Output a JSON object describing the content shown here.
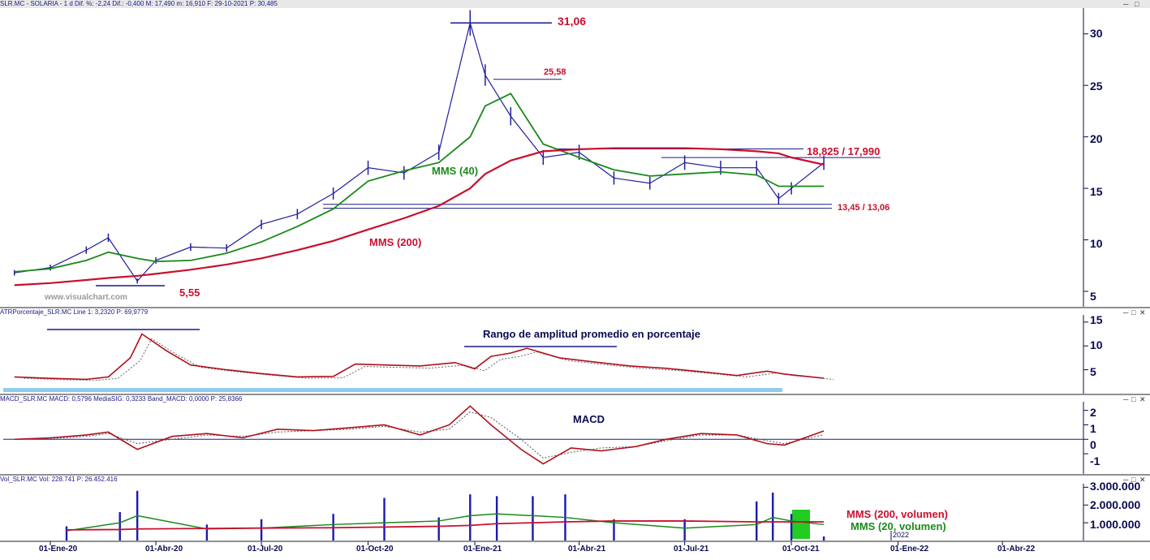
{
  "headers": {
    "price": "SLR.MC - SOLARIA - 1 d Dif. %: -2,24 Dif.: -0,400 M: 17,490 m: 16,910 F: 29-10-2021 P: 30,485",
    "atr": "ATRPorcentaje_SLR.MC Line 1: 3,2320 P: 69,9779",
    "macd": "MACD_SLR.MC MACD: 0,5796 MediaSIG: 0,3233 Band_MACD: 0,0000 P: 25,8366",
    "vol": "Vol_SLR.MC Vol: 228.741 P: 26.452.416"
  },
  "annotations": {
    "high": "31,06",
    "mid_high": "25,58",
    "resistance": "18,825 / 17,990",
    "support": "13,45 / 13,06",
    "low": "5,55",
    "mms40": "MMS (40)",
    "mms200": "MMS (200)",
    "watermark": "www.visualchart.com",
    "atr_title": "Rango de amplitud promedio en porcentaje",
    "macd_title": "MACD",
    "vol_mms200": "MMS (200, volumen)",
    "vol_mms20": "MMS (20, volumen)",
    "year_label": "2022"
  },
  "colors": {
    "price": "#1f1f9e",
    "mms40": "#1a8a1a",
    "mms200": "#c8102e",
    "grid": "#0b0b52",
    "atr_band": "#8fcbef",
    "vol_highlight": "#22cc22"
  },
  "chart_data": [
    {
      "type": "line",
      "panel": "price",
      "x": [
        "2019-12-01",
        "2020-01-01",
        "2020-02-01",
        "2020-02-20",
        "2020-03-16",
        "2020-04-01",
        "2020-05-01",
        "2020-06-01",
        "2020-07-01",
        "2020-08-01",
        "2020-09-01",
        "2020-10-01",
        "2020-11-01",
        "2020-12-01",
        "2020-12-28",
        "2021-01-10",
        "2021-02-01",
        "2021-03-01",
        "2021-04-01",
        "2021-05-01",
        "2021-06-01",
        "2021-07-01",
        "2021-08-01",
        "2021-09-01",
        "2021-09-20",
        "2021-10-01",
        "2021-10-29"
      ],
      "series": [
        {
          "name": "SOLARIA",
          "values": [
            6.8,
            7.3,
            9.0,
            10.2,
            6.0,
            8.0,
            9.3,
            9.2,
            11.5,
            12.5,
            14.5,
            17.0,
            16.5,
            18.5,
            31.06,
            26.0,
            22.0,
            18.0,
            18.5,
            16.0,
            15.5,
            17.5,
            17.0,
            17.0,
            14.0,
            15.0,
            17.49
          ]
        },
        {
          "name": "MMS (40)",
          "values": [
            6.9,
            7.2,
            8.0,
            8.8,
            8.2,
            7.9,
            8.0,
            8.7,
            9.8,
            11.3,
            13.0,
            15.7,
            16.7,
            17.5,
            20.0,
            23.0,
            24.2,
            19.3,
            18.0,
            16.8,
            16.2,
            16.4,
            16.6,
            16.3,
            15.2,
            15.2,
            15.2
          ]
        },
        {
          "name": "MMS (200)",
          "values": [
            5.6,
            5.8,
            6.1,
            6.3,
            6.5,
            6.7,
            7.1,
            7.6,
            8.2,
            9.0,
            9.9,
            11.0,
            12.1,
            13.3,
            15.0,
            16.4,
            17.7,
            18.6,
            18.8,
            18.9,
            18.9,
            18.9,
            18.8,
            18.6,
            18.4,
            18.0,
            17.3
          ]
        }
      ],
      "ylim": [
        3.5,
        32.5
      ],
      "yticks": [
        5,
        10,
        15,
        20,
        25,
        30
      ],
      "levels": [
        31.06,
        25.58,
        18.825,
        17.99,
        13.45,
        13.06,
        5.55
      ]
    },
    {
      "type": "line",
      "panel": "atr",
      "x": [
        "2019-12-01",
        "2020-01-01",
        "2020-02-01",
        "2020-02-20",
        "2020-03-10",
        "2020-03-20",
        "2020-04-10",
        "2020-05-01",
        "2020-06-01",
        "2020-07-01",
        "2020-08-01",
        "2020-09-01",
        "2020-09-20",
        "2020-10-15",
        "2020-11-15",
        "2020-12-15",
        "2021-01-01",
        "2021-01-15",
        "2021-02-01",
        "2021-02-15",
        "2021-03-15",
        "2021-04-15",
        "2021-05-15",
        "2021-06-15",
        "2021-07-15",
        "2021-08-15",
        "2021-09-10",
        "2021-09-25",
        "2021-10-29"
      ],
      "series": [
        {
          "name": "Line 1",
          "values": [
            3.5,
            3.2,
            3.0,
            3.5,
            7.5,
            12.5,
            9.0,
            6.0,
            5.0,
            4.2,
            3.5,
            3.6,
            6.2,
            6.0,
            5.8,
            6.5,
            5.2,
            7.8,
            8.5,
            9.5,
            7.5,
            6.6,
            5.8,
            5.3,
            4.6,
            3.8,
            4.7,
            4.1,
            3.23
          ]
        }
      ],
      "ylim": [
        0,
        16.5
      ],
      "yticks": [
        5,
        10,
        15
      ]
    },
    {
      "type": "line",
      "panel": "macd",
      "x": [
        "2019-12-01",
        "2020-01-01",
        "2020-02-01",
        "2020-02-20",
        "2020-03-16",
        "2020-04-15",
        "2020-05-15",
        "2020-06-15",
        "2020-07-15",
        "2020-08-15",
        "2020-09-15",
        "2020-10-15",
        "2020-11-15",
        "2020-12-10",
        "2020-12-28",
        "2021-01-15",
        "2021-02-10",
        "2021-03-01",
        "2021-03-25",
        "2021-04-20",
        "2021-05-20",
        "2021-06-15",
        "2021-07-15",
        "2021-08-15",
        "2021-09-10",
        "2021-09-25",
        "2021-10-29"
      ],
      "series": [
        {
          "name": "MACD",
          "values": [
            0.0,
            0.1,
            0.3,
            0.5,
            -0.7,
            0.2,
            0.4,
            0.1,
            0.7,
            0.6,
            0.8,
            1.0,
            0.3,
            1.0,
            2.3,
            1.0,
            -0.7,
            -1.7,
            -0.6,
            -0.8,
            -0.5,
            0.0,
            0.4,
            0.3,
            -0.3,
            -0.4,
            0.58
          ]
        },
        {
          "name": "MediaSIG",
          "values": [
            0.0,
            0.05,
            0.2,
            0.4,
            -0.3,
            0.0,
            0.3,
            0.2,
            0.5,
            0.6,
            0.7,
            0.9,
            0.5,
            0.7,
            1.9,
            1.5,
            0.0,
            -1.3,
            -0.9,
            -0.6,
            -0.5,
            -0.1,
            0.3,
            0.3,
            -0.1,
            -0.3,
            0.32
          ]
        }
      ],
      "ylim": [
        -2.4,
        2.6
      ],
      "yticks": [
        -1,
        0,
        1,
        2
      ]
    },
    {
      "type": "bar",
      "panel": "volume",
      "x": [
        "2020-01-15",
        "2020-03-01",
        "2020-03-16",
        "2020-05-15",
        "2020-07-01",
        "2020-09-01",
        "2020-10-15",
        "2020-12-01",
        "2020-12-28",
        "2021-01-20",
        "2021-02-20",
        "2021-03-20",
        "2021-05-01",
        "2021-07-01",
        "2021-09-01",
        "2021-09-15",
        "2021-10-01",
        "2021-10-29"
      ],
      "series": [
        {
          "name": "Vol",
          "values": [
            800000,
            1600000,
            2800000,
            900000,
            1200000,
            1500000,
            2400000,
            1300000,
            2600000,
            2500000,
            2500000,
            2600000,
            1200000,
            1200000,
            2200000,
            2700000,
            1500000,
            228741
          ]
        },
        {
          "name": "MMS (20, volumen)",
          "values": [
            550000,
            1000000,
            1400000,
            650000,
            700000,
            900000,
            1000000,
            1100000,
            1400000,
            1500000,
            1400000,
            1300000,
            1000000,
            700000,
            900000,
            1300000,
            1100000,
            900000
          ]
        },
        {
          "name": "MMS (200, volumen)",
          "values": [
            600000,
            620000,
            650000,
            680000,
            700000,
            720000,
            760000,
            800000,
            850000,
            950000,
            1000000,
            1050000,
            1100000,
            1100000,
            1050000,
            1050000,
            1050000,
            1050000
          ]
        }
      ],
      "ylim": [
        0,
        3200000
      ],
      "yticks": [
        1000000,
        2000000,
        3000000
      ],
      "ytick_labels": [
        "1.000.000",
        "2.000.000",
        "3.000.000"
      ]
    }
  ],
  "xaxis": {
    "ticks": [
      "01-Ene-20",
      "01-Abr-20",
      "01-Jul-20",
      "01-Oct-20",
      "01-Ene-21",
      "01-Abr-21",
      "01-Jul-21",
      "01-Oct-21",
      "01-Ene-22",
      "01-Abr-22"
    ]
  }
}
